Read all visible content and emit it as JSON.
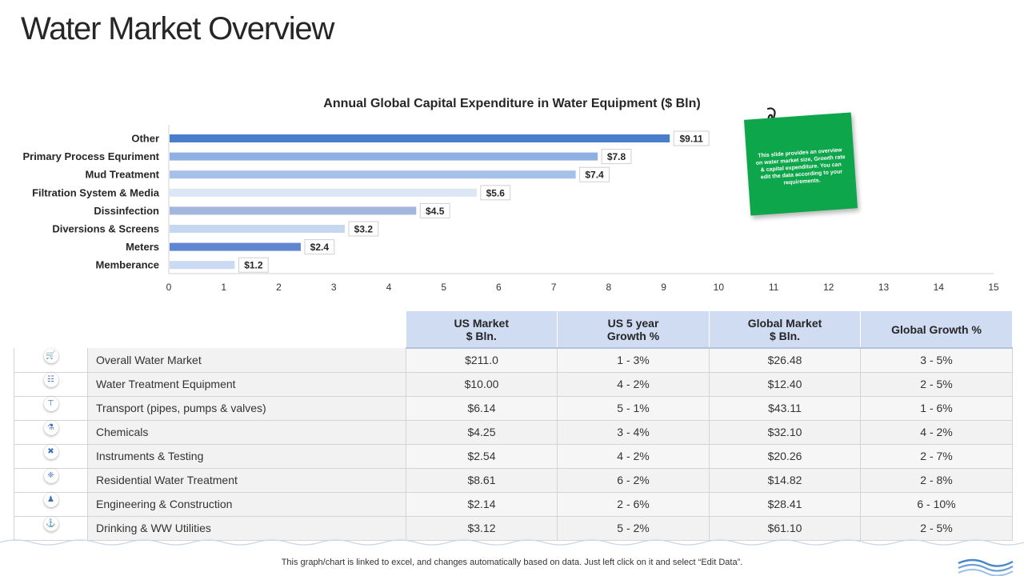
{
  "page": {
    "title": "Water Market Overview",
    "footer": "This graph/chart is linked to excel,  and changes automatically based on data. Just left click on it and select “Edit Data”.",
    "note": "This slide provides an overview on water market size, Growth rate & capital expenditure. You can edit the data according to your requirements."
  },
  "chart_data": {
    "type": "bar",
    "orientation": "horizontal",
    "title": "Annual Global Capital Expenditure in Water Equipment ($ Bln)",
    "categories": [
      "Other",
      "Primary Process Equriment",
      "Mud Treatment",
      "Filtration System & Media",
      "Dissinfection",
      "Diversions & Screens",
      "Meters",
      "Memberance"
    ],
    "values": [
      9.11,
      7.8,
      7.4,
      5.6,
      4.5,
      3.2,
      2.4,
      1.2
    ],
    "data_labels": [
      "$9.11",
      "$7.8",
      "$7.4",
      "$5.6",
      "$4.5",
      "$3.2",
      "$2.4",
      "$1.2"
    ],
    "bar_colors": [
      "#4a7ecb",
      "#8fb0e2",
      "#a6c1e9",
      "#dce7f6",
      "#a2b6de",
      "#c6d7f0",
      "#6086d2",
      "#c9daf2"
    ],
    "xlim": [
      0,
      15
    ],
    "xticks": [
      0,
      1,
      2,
      3,
      4,
      5,
      6,
      7,
      8,
      9,
      10,
      11,
      12,
      13,
      14,
      15
    ],
    "xlabel": "",
    "ylabel": ""
  },
  "table": {
    "headers": [
      [
        "US Market",
        "$ Bln."
      ],
      [
        "US 5 year",
        "Growth %"
      ],
      [
        "Global Market",
        "$ Bln."
      ],
      [
        "Global Growth %"
      ]
    ],
    "rows": [
      {
        "icon": "shopping-cart-icon",
        "glyph": "🛒",
        "name": "Overall Water Market",
        "us_market": "$211.0",
        "us_growth": "1 - 3%",
        "global_market": "$26.48",
        "global_growth": "3 - 5%"
      },
      {
        "icon": "filter-tanks-icon",
        "glyph": "☷",
        "name": "Water Treatment Equipment",
        "us_market": "$10.00",
        "us_growth": "4 - 2%",
        "global_market": "$12.40",
        "global_growth": "2 - 5%"
      },
      {
        "icon": "pipe-icon",
        "glyph": "⊤",
        "name": "Transport (pipes, pumps & valves)",
        "us_market": "$6.14",
        "us_growth": "5 - 1%",
        "global_market": "$43.11",
        "global_growth": "1 - 6%"
      },
      {
        "icon": "chemicals-icon",
        "glyph": "⚗",
        "name": "Chemicals",
        "us_market": "$4.25",
        "us_growth": "3 - 4%",
        "global_market": "$32.10",
        "global_growth": "4 - 2%"
      },
      {
        "icon": "tools-icon",
        "glyph": "✖",
        "name": "Instruments & Testing",
        "us_market": "$2.54",
        "us_growth": "4 - 2%",
        "global_market": "$20.26",
        "global_growth": "2 - 7%"
      },
      {
        "icon": "water-drop-icon",
        "glyph": "❈",
        "name": "Residential Water Treatment",
        "us_market": "$8.61",
        "us_growth": "6 - 2%",
        "global_market": "$14.82",
        "global_growth": "2 - 8%"
      },
      {
        "icon": "engineer-icon",
        "glyph": "♟",
        "name": "Engineering & Construction",
        "us_market": "$2.14",
        "us_growth": "2 - 6%",
        "global_market": "$28.41",
        "global_growth": "6 - 10%"
      },
      {
        "icon": "faucet-icon",
        "glyph": "⚓",
        "name": "Drinking & WW Utilities",
        "us_market": "$3.12",
        "us_growth": "5 - 2%",
        "global_market": "$61.10",
        "global_growth": "2 - 5%"
      }
    ]
  }
}
